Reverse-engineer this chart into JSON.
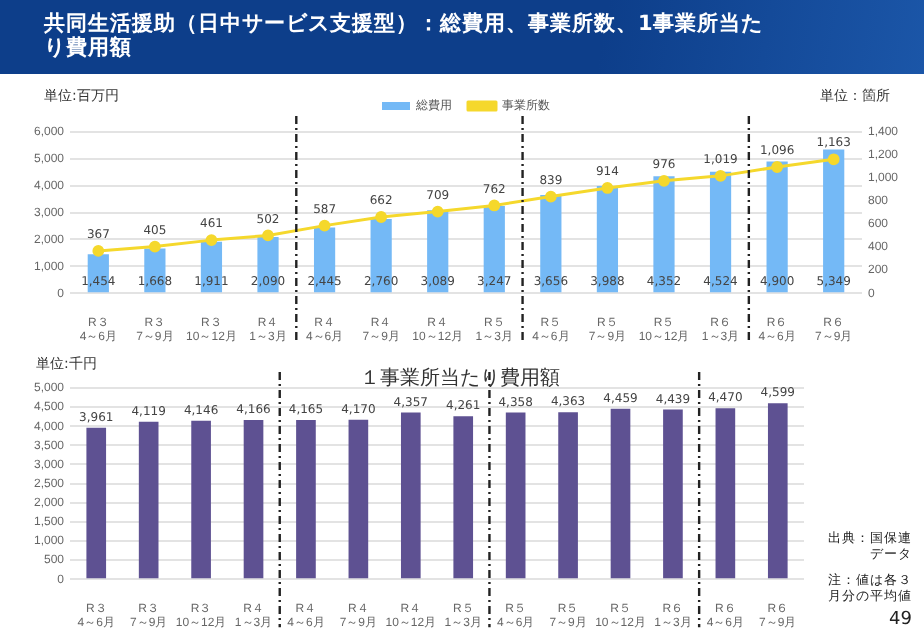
{
  "chart_data": [
    {
      "type": "bar",
      "title": "共同生活援助（日中サービス支援型）：総費用、事業所数、1事業所当たり費用額",
      "ylabel": "単位:百万円",
      "y2label": "単位：箇所",
      "categories": [
        "R３\n4～6月",
        "R３\n7～9月",
        "R３\n10～12月",
        "R４\n1～3月",
        "R４\n4～6月",
        "R４\n7～9月",
        "R４\n10～12月",
        "R５\n1～3月",
        "R５\n4～6月",
        "R５\n7～9月",
        "R５\n10～12月",
        "R６\n1～3月",
        "R６\n4～6月",
        "R６\n7～9月"
      ],
      "series": [
        {
          "name": "総費用",
          "color": "#74b9f6",
          "values": [
            1454,
            1668,
            1911,
            2090,
            2445,
            2760,
            3089,
            3247,
            3656,
            3988,
            4352,
            4524,
            4900,
            5349
          ],
          "value_labels": [
            "1,454",
            "1,668",
            "1,911",
            "2,090",
            "2,445",
            "2,760",
            "3,089",
            "3,247",
            "3,656",
            "3,988",
            "4,352",
            "4,524",
            "4,900",
            "5,349"
          ]
        },
        {
          "name": "事業所数",
          "type": "line",
          "axis": "y2",
          "color": "#f5d82c",
          "values": [
            367,
            405,
            461,
            502,
            587,
            662,
            709,
            762,
            839,
            914,
            976,
            1019,
            1096,
            1163
          ],
          "value_labels": [
            "367",
            "405",
            "461",
            "502",
            "587",
            "662",
            "709",
            "762",
            "839",
            "914",
            "976",
            "1,019",
            "1,096",
            "1,163"
          ]
        }
      ],
      "ylim": [
        0,
        6000
      ],
      "yticks": [
        {
          "value": 0,
          "label": "0"
        },
        {
          "value": 1000,
          "label": "1,000"
        },
        {
          "value": 2000,
          "label": "2,000"
        },
        {
          "value": 3000,
          "label": "3,000"
        },
        {
          "value": 4000,
          "label": "4,000"
        },
        {
          "value": 5000,
          "label": "5,000"
        },
        {
          "value": 6000,
          "label": "6,000"
        }
      ],
      "y2lim": [
        0,
        1400
      ],
      "y2ticks": [
        {
          "value": 0,
          "label": "0"
        },
        200,
        400,
        600,
        800,
        {
          "value": 1000,
          "label": "1,000"
        },
        {
          "value": 1200,
          "label": "1,200"
        },
        {
          "value": 1400,
          "label": "1,400"
        }
      ],
      "marker": "circle",
      "grid": "y",
      "legend": "top"
    },
    {
      "type": "bar",
      "title": "１事業所当たり費用額",
      "ylabel": "単位:千円",
      "categories": [
        "R３\n4～6月",
        "R３\n7～9月",
        "R３\n10～12月",
        "R４\n1～3月",
        "R４\n4～6月",
        "R４\n7～9月",
        "R４\n10～12月",
        "R５\n1～3月",
        "R５\n4～6月",
        "R５\n7～9月",
        "R５\n10～12月",
        "R６\n1～3月",
        "R６\n4～6月",
        "R６\n7～9月"
      ],
      "series": [
        {
          "color": "#5e5192",
          "values": [
            3961,
            4119,
            4146,
            4166,
            4165,
            4170,
            4357,
            4261,
            4358,
            4363,
            4459,
            4439,
            4470,
            4599
          ],
          "value_labels": [
            "3,961",
            "4,119",
            "4,146",
            "4,166",
            "4,165",
            "4,170",
            "4,357",
            "4,261",
            "4,358",
            "4,363",
            "4,459",
            "4,439",
            "4,470",
            "4,599"
          ]
        }
      ],
      "ylim": [
        0,
        5000
      ],
      "yticks": [
        {
          "value": 0,
          "label": "0"
        },
        500,
        {
          "value": 1000,
          "label": "1,000"
        },
        {
          "value": 1500,
          "label": "1,500"
        },
        {
          "value": 2000,
          "label": "2,000"
        },
        {
          "value": 2500,
          "label": "2,500"
        },
        {
          "value": 3000,
          "label": "3,000"
        },
        {
          "value": 3500,
          "label": "3,500"
        },
        {
          "value": 4000,
          "label": "4,000"
        },
        {
          "value": 4500,
          "label": "4,500"
        },
        {
          "value": 5000,
          "label": "5,000"
        }
      ],
      "grid": "y",
      "annotations": [
        "出典：国保連データ",
        "注：値は各３月分の平均値",
        "49"
      ]
    }
  ]
}
